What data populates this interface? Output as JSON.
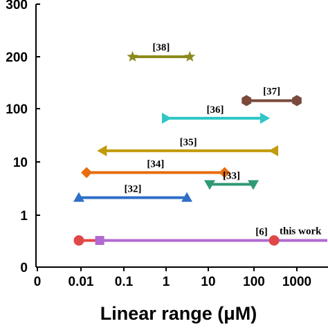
{
  "chart_data": {
    "type": "range",
    "title": "",
    "xlabel": "Linear range (μM)",
    "ylabel": "",
    "x_scale": "log",
    "x_ticks": [
      "0",
      "0.01",
      "0.1",
      "1",
      "10",
      "100",
      "1000"
    ],
    "y_ticks": [
      "0",
      "1",
      "10",
      "100",
      "200",
      "300"
    ],
    "series": [
      {
        "name": "[38]",
        "x_start": 0.17,
        "x_end": 3.5,
        "y_tick": "200",
        "color": "#8b8a1d",
        "start_marker": "star",
        "end_marker": "star"
      },
      {
        "name": "[37]",
        "x_start": 70,
        "x_end": 1000,
        "y_tick": "100",
        "y_offset": 0.15,
        "color": "#7a4a3c",
        "start_marker": "hexagon",
        "end_marker": "hexagon"
      },
      {
        "name": "[36]",
        "x_start": 1,
        "x_end": 180,
        "y_tick": "10",
        "y_offset": 0.82,
        "color": "#2ec6c6",
        "start_marker": "triangle-right",
        "end_marker": "triangle-right"
      },
      {
        "name": "[35]",
        "x_start": 0.035,
        "x_end": 300,
        "y_tick": "10",
        "y_offset": 0.21,
        "color": "#c29b0c",
        "start_marker": "triangle-left",
        "end_marker": "triangle-left"
      },
      {
        "name": "[34]",
        "x_start": 0.015,
        "x_end": 22,
        "y_tick": "10",
        "y_offset": -0.2,
        "color": "#e86d0f",
        "start_marker": "diamond",
        "end_marker": "diamond"
      },
      {
        "name": "[33]",
        "x_start": 10,
        "x_end": 100,
        "y_tick": "10",
        "y_offset": -0.42,
        "color": "#2e9a74",
        "start_marker": "triangle-down",
        "end_marker": "triangle-down"
      },
      {
        "name": "[32]",
        "x_start": 0.01,
        "x_end": 3,
        "y_tick": "1",
        "y_offset": 0.33,
        "color": "#2f6fc7",
        "start_marker": "triangle-up",
        "end_marker": "triangle-up"
      },
      {
        "name": "[6]",
        "x_start": 0.01,
        "x_end": 300,
        "y_tick": "0",
        "y_offset": 0.5,
        "color": "#e04848",
        "start_marker": "circle",
        "end_marker": "circle"
      },
      {
        "name": "this work",
        "x_start": 0.03,
        "x_end": 5000,
        "y_tick": "0",
        "y_offset": 0.5,
        "color": "#b06ad0",
        "start_marker": "square",
        "end_marker": "none"
      }
    ]
  }
}
